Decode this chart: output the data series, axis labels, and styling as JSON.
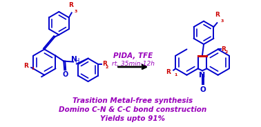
{
  "bg_color": "#ffffff",
  "blue": "#0000cc",
  "red": "#cc0000",
  "purple": "#9900bb",
  "arrow_color": "#000000",
  "text_lines": [
    "Trasition Metal-free synthesis",
    "Domino C-N & C-C bond construction",
    "Yields upto 91%"
  ],
  "reagent_line1": "PIDA, TFE",
  "reagent_line2": "rt, 35min-12h",
  "figsize": [
    3.78,
    1.84
  ],
  "dpi": 100
}
